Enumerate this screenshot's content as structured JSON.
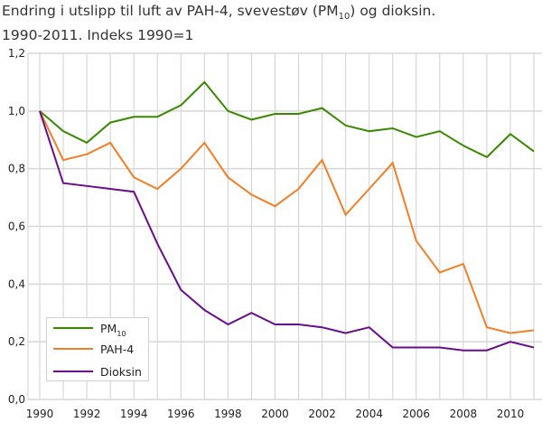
{
  "chart_data": {
    "type": "line",
    "title_line1_pre": "Endring i utslipp til luft av PAH-4, svevestøv (PM",
    "title_line1_sub": "10",
    "title_line1_post": ") og dioksin.",
    "title_line2": "1990-2011. Indeks 1990=1",
    "x": [
      1990,
      1991,
      1992,
      1993,
      1994,
      1995,
      1996,
      1997,
      1998,
      1999,
      2000,
      2001,
      2002,
      2003,
      2004,
      2005,
      2006,
      2007,
      2008,
      2009,
      2010,
      2011
    ],
    "xlim": [
      1990,
      2011
    ],
    "x_ticks": [
      "1990",
      "1992",
      "1994",
      "1996",
      "1998",
      "2000",
      "2002",
      "2004",
      "2006",
      "2008",
      "2010"
    ],
    "ylim": [
      0,
      1.2
    ],
    "y_ticks": [
      "0,0",
      "0,2",
      "0,4",
      "0,6",
      "0,8",
      "1,0",
      "1,2"
    ],
    "grid": true,
    "legend_position": "bottom-left",
    "series": [
      {
        "name": "PM",
        "name_sub": "10",
        "color": "#3a8a00",
        "values": [
          1.0,
          0.93,
          0.89,
          0.96,
          0.98,
          0.98,
          1.02,
          1.1,
          1.0,
          0.97,
          0.99,
          0.99,
          1.01,
          0.95,
          0.93,
          0.94,
          0.91,
          0.93,
          0.88,
          0.84,
          0.92,
          0.86
        ]
      },
      {
        "name": "PAH-4",
        "color": "#f07f27",
        "values": [
          1.0,
          0.83,
          0.85,
          0.89,
          0.77,
          0.73,
          0.8,
          0.89,
          0.77,
          0.71,
          0.67,
          0.73,
          0.83,
          0.64,
          0.73,
          0.82,
          0.55,
          0.44,
          0.47,
          0.25,
          0.23,
          0.24
        ]
      },
      {
        "name": "Dioksin",
        "color": "#6a0d8c",
        "values": [
          1.0,
          0.75,
          0.74,
          0.73,
          0.72,
          0.54,
          0.38,
          0.31,
          0.26,
          0.3,
          0.26,
          0.26,
          0.25,
          0.23,
          0.25,
          0.18,
          0.18,
          0.18,
          0.17,
          0.17,
          0.2,
          0.18
        ]
      }
    ]
  }
}
